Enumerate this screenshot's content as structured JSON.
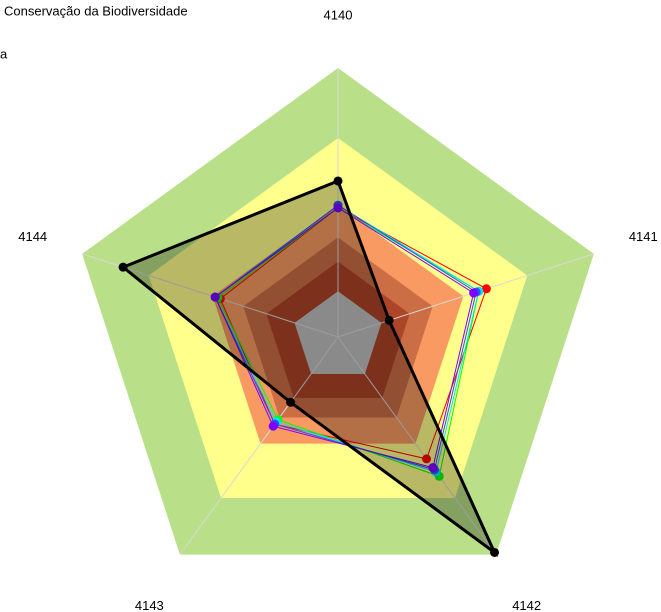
{
  "chart_data": {
    "type": "radar",
    "title": "Conservação da Biodiversidade",
    "subtitle": "a",
    "categories": [
      "4140",
      "4141",
      "4142",
      "4143",
      "4144"
    ],
    "rlim": [
      0,
      1
    ],
    "bands": [
      {
        "value": 1.0,
        "color": "#b9df88"
      },
      {
        "value": 0.74,
        "color": "#ffff8c"
      },
      {
        "value": 0.49,
        "color": "#f99a62"
      },
      {
        "value": 0.37,
        "color": "#cc6e45"
      },
      {
        "value": 0.28,
        "color": "#ad4528"
      },
      {
        "value": 0.17,
        "color": "#c0c0c0"
      }
    ],
    "series": [
      {
        "color": "#ff0000",
        "values": [
          0.48,
          0.58,
          0.56,
          0.4,
          0.46
        ]
      },
      {
        "color": "#00ff00",
        "values": [
          0.48,
          0.55,
          0.64,
          0.38,
          0.47
        ]
      },
      {
        "color": "#00e5ff",
        "values": [
          0.49,
          0.55,
          0.62,
          0.39,
          0.48
        ]
      },
      {
        "color": "#3050ff",
        "values": [
          0.49,
          0.54,
          0.61,
          0.4,
          0.48
        ]
      },
      {
        "color": "#7f00ff",
        "values": [
          0.48,
          0.53,
          0.6,
          0.41,
          0.48
        ]
      },
      {
        "color": "#000000",
        "values": [
          0.58,
          0.2,
          0.99,
          0.3,
          0.84
        ],
        "fill": true
      }
    ]
  }
}
